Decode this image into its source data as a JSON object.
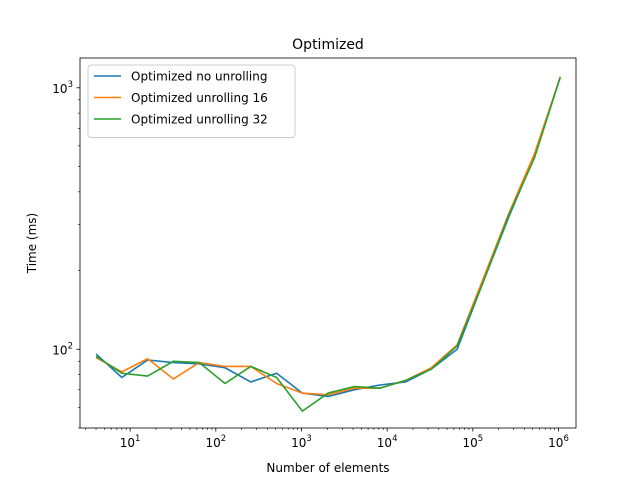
{
  "chart_data": {
    "type": "line",
    "title": "Optimized",
    "xlabel": "Number of elements",
    "ylabel": "Time (ms)",
    "xscale": "log",
    "yscale": "log",
    "xlim": [
      2.6,
      1600000
    ],
    "ylim": [
      50,
      1300
    ],
    "grid": false,
    "legend_position": "top-left",
    "x_ticks": [
      {
        "base": "10",
        "exp": "1",
        "value": 10
      },
      {
        "base": "10",
        "exp": "2",
        "value": 100
      },
      {
        "base": "10",
        "exp": "3",
        "value": 1000
      },
      {
        "base": "10",
        "exp": "4",
        "value": 10000
      },
      {
        "base": "10",
        "exp": "5",
        "value": 100000
      },
      {
        "base": "10",
        "exp": "6",
        "value": 1000000
      }
    ],
    "y_ticks": [
      {
        "base": "10",
        "exp": "2",
        "value": 100
      },
      {
        "base": "10",
        "exp": "3",
        "value": 1000
      }
    ],
    "x": [
      4,
      8,
      16,
      32,
      64,
      128,
      256,
      512,
      1024,
      2048,
      4096,
      8192,
      16384,
      32768,
      65536,
      131072,
      262144,
      524288,
      1048576
    ],
    "series": [
      {
        "name": "Optimized no unrolling",
        "color": "#1f77b4",
        "values": [
          96,
          78,
          91,
          89,
          88,
          85,
          75,
          81,
          68,
          66,
          70,
          73,
          75,
          84,
          100,
          180,
          320,
          550,
          1100
        ]
      },
      {
        "name": "Optimized unrolling 16",
        "color": "#ff7f0e",
        "values": [
          93,
          82,
          92,
          77,
          89,
          86,
          86,
          74,
          68,
          67,
          71,
          71,
          76,
          85,
          104,
          185,
          330,
          560,
          1100
        ]
      },
      {
        "name": "Optimized unrolling 32",
        "color": "#2ca02c",
        "values": [
          94,
          81,
          79,
          90,
          89,
          74,
          86,
          78,
          58,
          68,
          72,
          71,
          76,
          84,
          103,
          180,
          325,
          540,
          1100
        ]
      }
    ]
  }
}
